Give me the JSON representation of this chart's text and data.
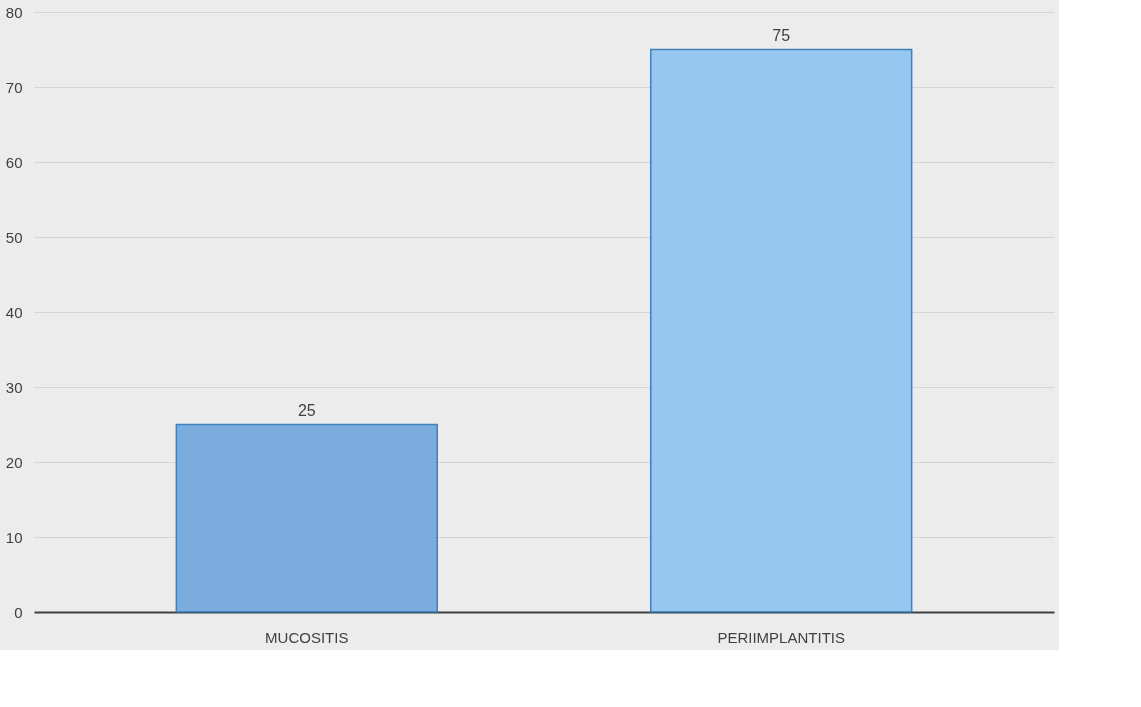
{
  "chart_data": {
    "type": "bar",
    "categories": [
      "MUCOSITIS",
      "PERIIMPLANTITIS"
    ],
    "values": [
      25,
      75
    ],
    "colors": [
      "#6ea6dc",
      "#8cc4f2"
    ],
    "ylim": [
      0,
      80
    ],
    "yticks": [
      0,
      10,
      20,
      30,
      40,
      50,
      60,
      70,
      80
    ],
    "grid": "y",
    "data_labels": true
  }
}
